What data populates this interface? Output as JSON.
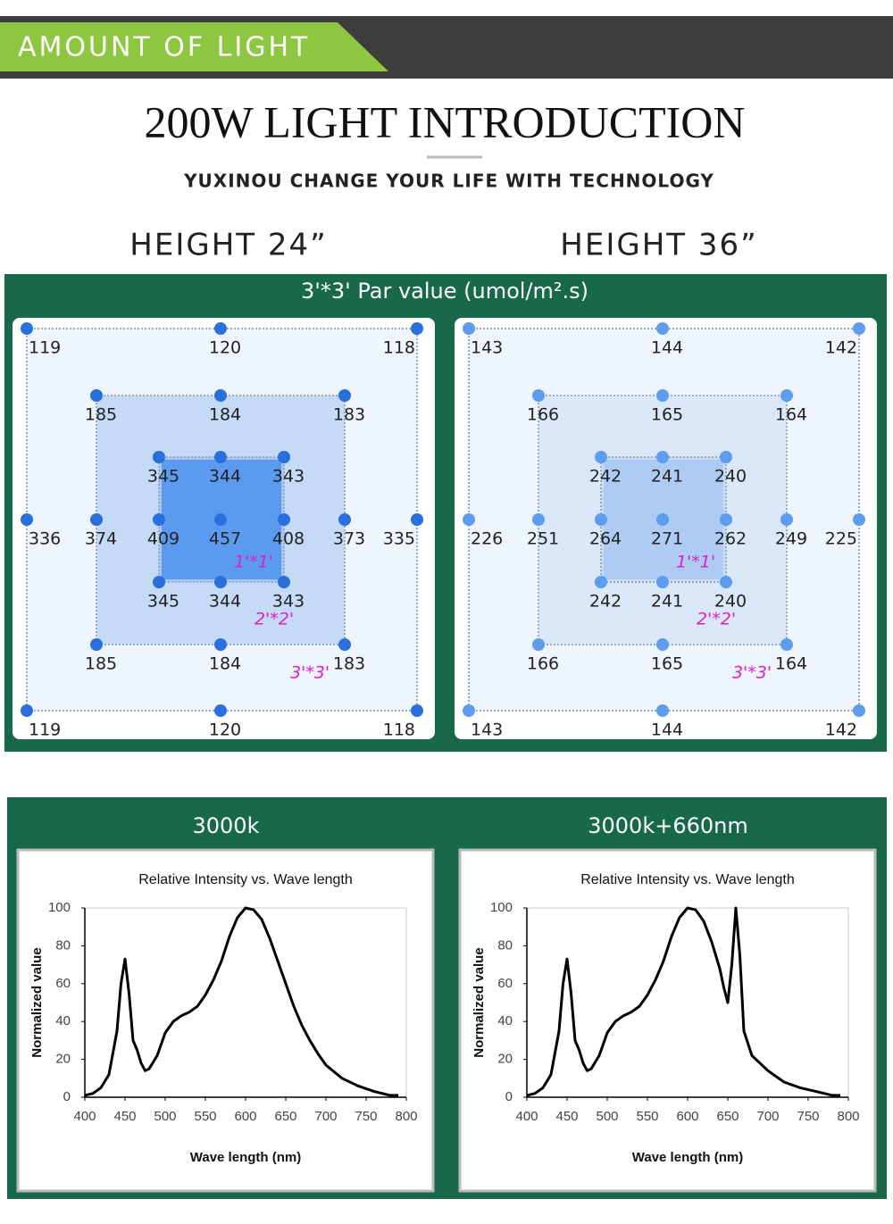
{
  "banner": "AMOUNT OF LIGHT",
  "title": "200W LIGHT INTRODUCTION",
  "subtitle": "YUXINOU CHANGE YOUR LIFE WITH TECHNOLOGY",
  "par_title": "3'*3' Par value (umol/m².s)",
  "par_maps": [
    {
      "heading": "HEIGHT 24”",
      "rows": [
        [
          119,
          null,
          null,
          120,
          null,
          null,
          118
        ],
        [
          null,
          185,
          null,
          184,
          null,
          183,
          null
        ],
        [
          null,
          null,
          345,
          344,
          343,
          null,
          null
        ],
        [
          336,
          374,
          409,
          457,
          408,
          373,
          335
        ],
        [
          null,
          null,
          345,
          344,
          343,
          null,
          null
        ],
        [
          null,
          185,
          null,
          184,
          null,
          183,
          null
        ],
        [
          119,
          null,
          null,
          120,
          null,
          null,
          118
        ]
      ],
      "zone_labels": [
        "1'*1'",
        "2'*2'",
        "3'*3'"
      ]
    },
    {
      "heading": "HEIGHT 36”",
      "rows": [
        [
          143,
          null,
          null,
          144,
          null,
          null,
          142
        ],
        [
          null,
          166,
          null,
          165,
          null,
          164,
          null
        ],
        [
          null,
          null,
          242,
          241,
          240,
          null,
          null
        ],
        [
          226,
          251,
          264,
          271,
          262,
          249,
          225
        ],
        [
          null,
          null,
          242,
          241,
          240,
          null,
          null
        ],
        [
          null,
          166,
          null,
          165,
          null,
          164,
          null
        ],
        [
          143,
          null,
          null,
          144,
          null,
          null,
          142
        ]
      ],
      "zone_labels": [
        "1'*1'",
        "2'*2'",
        "3'*3'"
      ]
    }
  ],
  "chart_data": [
    {
      "type": "line",
      "header": "3000k",
      "title": "Relative Intensity vs. Wave length",
      "x_label": "Wave length (nm)",
      "y_label": "Normalized value",
      "x": [
        400,
        410,
        420,
        430,
        440,
        445,
        450,
        455,
        460,
        465,
        470,
        475,
        480,
        490,
        500,
        510,
        520,
        530,
        540,
        550,
        560,
        570,
        580,
        590,
        600,
        610,
        620,
        630,
        640,
        650,
        660,
        670,
        680,
        690,
        700,
        720,
        740,
        760,
        780,
        790
      ],
      "series": [
        {
          "color": "#000000",
          "values": [
            1,
            2,
            5,
            12,
            35,
            60,
            73,
            55,
            30,
            25,
            18,
            14,
            15,
            22,
            34,
            40,
            43,
            45,
            48,
            54,
            62,
            72,
            85,
            95,
            100,
            99,
            94,
            84,
            72,
            60,
            48,
            38,
            30,
            23,
            17,
            10,
            6,
            3,
            1,
            1
          ]
        }
      ],
      "xlim": [
        400,
        800
      ],
      "ylim": [
        0,
        100
      ],
      "xticks": [
        400,
        450,
        500,
        550,
        600,
        650,
        700,
        750,
        800
      ],
      "yticks": [
        0,
        20,
        40,
        60,
        80,
        100
      ]
    },
    {
      "type": "line",
      "header": "3000k+660nm",
      "title": "Relative Intensity vs. Wave length",
      "x_label": "Wave length (nm)",
      "y_label": "Normalized value",
      "x": [
        400,
        410,
        420,
        430,
        440,
        445,
        450,
        455,
        460,
        465,
        470,
        475,
        480,
        490,
        500,
        510,
        520,
        530,
        540,
        550,
        560,
        570,
        580,
        590,
        600,
        610,
        620,
        630,
        640,
        645,
        650,
        655,
        660,
        665,
        670,
        680,
        690,
        700,
        720,
        740,
        760,
        780,
        790
      ],
      "series": [
        {
          "color": "#000000",
          "values": [
            1,
            2,
            5,
            12,
            35,
            60,
            73,
            55,
            30,
            25,
            18,
            14,
            15,
            22,
            34,
            40,
            43,
            45,
            48,
            54,
            62,
            72,
            85,
            95,
            100,
            99,
            93,
            82,
            68,
            58,
            50,
            70,
            100,
            75,
            35,
            22,
            18,
            14,
            8,
            5,
            3,
            1,
            1
          ]
        }
      ],
      "xlim": [
        400,
        800
      ],
      "ylim": [
        0,
        100
      ],
      "xticks": [
        400,
        450,
        500,
        550,
        600,
        650,
        700,
        750,
        800
      ],
      "yticks": [
        0,
        20,
        40,
        60,
        80,
        100
      ]
    }
  ]
}
